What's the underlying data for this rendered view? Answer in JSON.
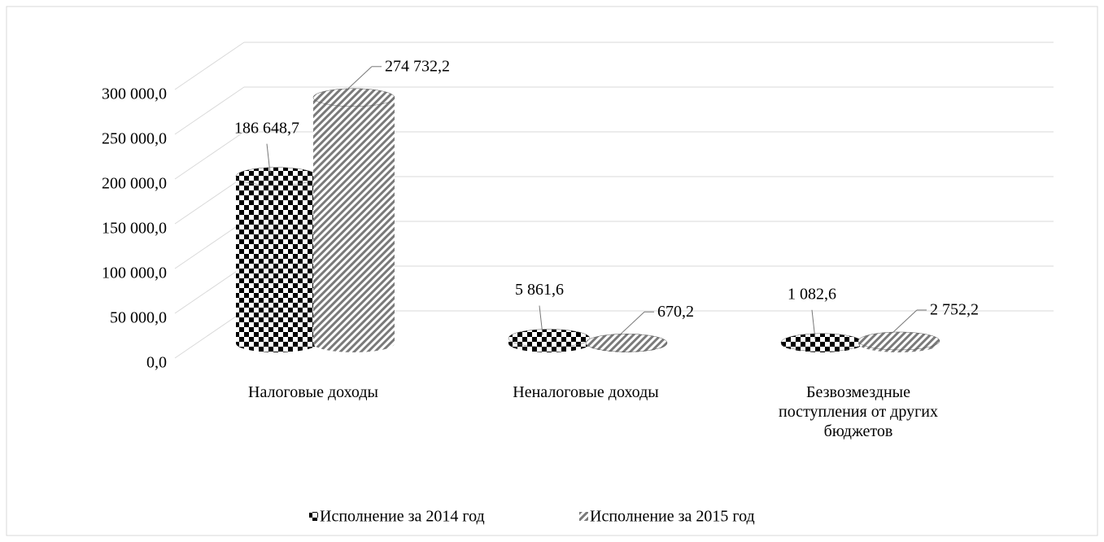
{
  "chart_data": {
    "type": "cylinder",
    "categories": [
      "Налоговые доходы",
      "Неналоговые доходы",
      "Безвозмездные поступления от других бюджетов"
    ],
    "series": [
      {
        "name": "Исполнение за 2014 год",
        "color": "#000000",
        "values": [
          186648.7,
          5861.6,
          1082.6
        ],
        "value_labels": [
          "186 648,7",
          "5 861,6",
          "1 082,6"
        ]
      },
      {
        "name": "Исполнение за 2015 год",
        "color": "#7a7a7a",
        "values": [
          274732.2,
          670.2,
          2752.2
        ],
        "value_labels": [
          "274 732,2",
          "670,2",
          "2 752,2"
        ]
      }
    ],
    "ylim": [
      0,
      300000
    ],
    "yticks": [
      {
        "value": 0,
        "label": "0,0"
      },
      {
        "value": 50000,
        "label": "50 000,0"
      },
      {
        "value": 100000,
        "label": "100 000,0"
      },
      {
        "value": 150000,
        "label": "150 000,0"
      },
      {
        "value": 200000,
        "label": "200 000,0"
      },
      {
        "value": 250000,
        "label": "250 000,0"
      },
      {
        "value": 300000,
        "label": "300 000,0"
      }
    ],
    "grid": true,
    "legend": "bottom"
  }
}
